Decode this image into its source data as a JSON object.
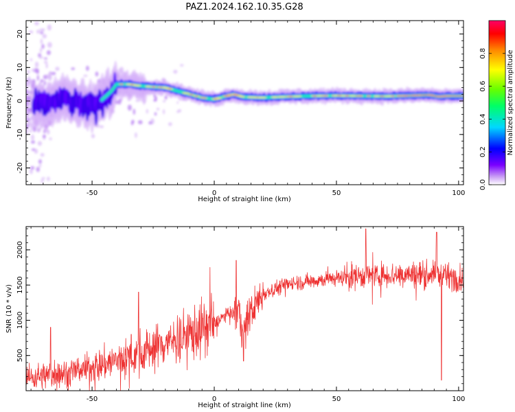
{
  "figure": {
    "title": "PAZ1.2024.162.10.35.G28"
  },
  "colors": {
    "snr_line": "#ee3333",
    "colormap": [
      "#ffffff",
      "#c89bf5",
      "#9b3df0",
      "#5b00ff",
      "#0000ff",
      "#00d8ff",
      "#00ff66",
      "#66ff00",
      "#ffff00",
      "#ff8800",
      "#ff0000",
      "#ff0066"
    ]
  },
  "chart_data": [
    {
      "type": "heatmap",
      "title": "PAZ1.2024.162.10.35.G28",
      "xlabel": "Height of straight line (km)",
      "ylabel": "Frequency (Hz)",
      "xlim": [
        -77,
        102
      ],
      "ylim": [
        -25,
        24
      ],
      "x_ticks": [
        -50,
        0,
        50,
        100
      ],
      "y_ticks": [
        -20,
        -10,
        0,
        10,
        20
      ],
      "colorbar": {
        "label": "Normalized spectral amplitude",
        "range": [
          0,
          1
        ],
        "ticks": [
          0.0,
          0.2,
          0.4,
          0.6,
          0.8
        ]
      },
      "ridge": {
        "x": [
          -70,
          -65,
          -60,
          -55,
          -52,
          -48,
          -45,
          -42,
          -40,
          -35,
          -30,
          -25,
          -20,
          -15,
          -10,
          -5,
          0,
          5,
          8,
          12,
          20,
          30,
          40,
          50,
          60,
          70,
          80,
          88,
          92,
          95,
          100
        ],
        "freq_hz": [
          -1,
          0,
          0.5,
          -1,
          -2,
          -1,
          1,
          3,
          5,
          5,
          4.5,
          4.2,
          4,
          3,
          2,
          1,
          0.5,
          1.5,
          2,
          1.2,
          1,
          1.3,
          1.5,
          1.6,
          1.5,
          1.4,
          1.6,
          1.8,
          1.3,
          1.5,
          1.5
        ]
      }
    },
    {
      "type": "line",
      "xlabel": "Height of straight line (km)",
      "ylabel": "SNR (10 * v/v)",
      "xlim": [
        -77,
        102
      ],
      "ylim": [
        0,
        2330
      ],
      "x_ticks": [
        -50,
        0,
        50,
        100
      ],
      "y_ticks": [
        500,
        1000,
        1500,
        2000
      ],
      "trend": {
        "x": [
          -77,
          -60,
          -50,
          -40,
          -30,
          -20,
          -10,
          0,
          5,
          10,
          12,
          15,
          20,
          30,
          40,
          50,
          60,
          70,
          80,
          90,
          100,
          102
        ],
        "snr": [
          180,
          260,
          330,
          430,
          540,
          680,
          800,
          950,
          1080,
          1130,
          820,
          1130,
          1380,
          1520,
          1560,
          1600,
          1630,
          1640,
          1650,
          1650,
          1600,
          1580
        ]
      },
      "notable_values": {
        "x": [
          -67,
          -34,
          -31,
          9,
          12,
          62,
          91,
          93
        ],
        "snr": [
          900,
          800,
          1400,
          1850,
          420,
          2300,
          2250,
          150
        ]
      }
    }
  ]
}
